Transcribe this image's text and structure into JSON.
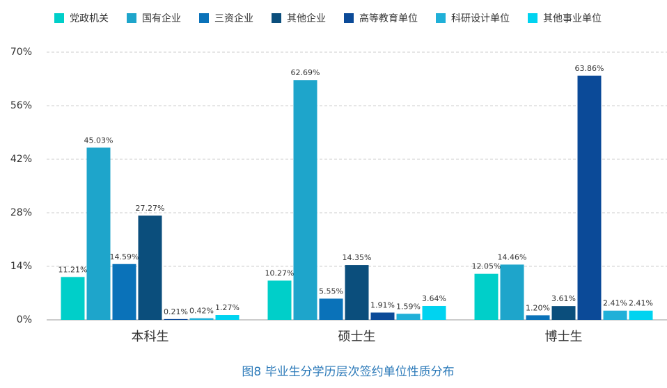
{
  "chart_data": {
    "type": "bar",
    "title": "图8  毕业生分学历层次签约单位性质分布",
    "categories": [
      "本科生",
      "硕士生",
      "博士生"
    ],
    "series": [
      {
        "name": "党政机关",
        "color": "#00cfc9",
        "values": [
          11.21,
          10.27,
          12.05
        ],
        "value_labels": [
          "11.21%",
          "10.27%",
          "12.05%"
        ]
      },
      {
        "name": "国有企业",
        "color": "#1ea5cb",
        "values": [
          45.03,
          62.69,
          14.46
        ],
        "value_labels": [
          "45.03%",
          "62.69%",
          "14.46%"
        ]
      },
      {
        "name": "三资企业",
        "color": "#0a72b9",
        "values": [
          14.59,
          5.55,
          1.2
        ],
        "value_labels": [
          "14.59%",
          "5.55%",
          "1.20%"
        ]
      },
      {
        "name": "其他企业",
        "color": "#0b4e7c",
        "values": [
          27.27,
          14.35,
          3.61
        ],
        "value_labels": [
          "27.27%",
          "14.35%",
          "3.61%"
        ]
      },
      {
        "name": "高等教育单位",
        "color": "#0b4a98",
        "values": [
          0.21,
          1.91,
          63.86
        ],
        "value_labels": [
          "0.21%",
          "1.91%",
          "63.86%"
        ]
      },
      {
        "name": "科研设计单位",
        "color": "#20b0d8",
        "values": [
          0.42,
          1.59,
          2.41
        ],
        "value_labels": [
          "0.42%",
          "1.59%",
          "2.41%"
        ]
      },
      {
        "name": "其他事业单位",
        "color": "#00d3f0",
        "values": [
          1.27,
          3.64,
          2.41
        ],
        "value_labels": [
          "1.27%",
          "3.64%",
          "2.41%"
        ]
      }
    ],
    "ylim": [
      0,
      70
    ],
    "yticks": [
      {
        "value": 0,
        "label": "0%"
      },
      {
        "value": 14,
        "label": "14%"
      },
      {
        "value": 28,
        "label": "28%"
      },
      {
        "value": 42,
        "label": "42%"
      },
      {
        "value": 56,
        "label": "56%"
      },
      {
        "value": 70,
        "label": "70%"
      }
    ],
    "grid": true
  }
}
